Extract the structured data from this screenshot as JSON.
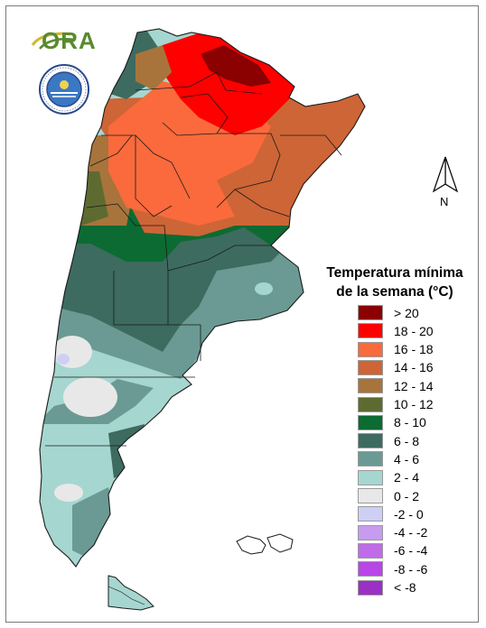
{
  "logo": {
    "text": "ORA"
  },
  "seal": {
    "text": "SERVICIO METEOROLOGICO NACIONAL ARGENTINA"
  },
  "north_arrow": {
    "label": "N"
  },
  "legend": {
    "title_line1": "Temperatura mínima",
    "title_line2": "de la semana (°C)",
    "items": [
      {
        "label": "> 20",
        "color": "#8b0000"
      },
      {
        "label": "18 - 20",
        "color": "#ff0000"
      },
      {
        "label": "16 - 18",
        "color": "#fa6a3c"
      },
      {
        "label": "14 - 16",
        "color": "#cd6536"
      },
      {
        "label": "12 - 14",
        "color": "#a8743c"
      },
      {
        "label": "10 - 12",
        "color": "#5d6b30"
      },
      {
        "label": "8 - 10",
        "color": "#0c6b32"
      },
      {
        "label": "6 - 8",
        "color": "#3d6b5f"
      },
      {
        "label": "4 - 6",
        "color": "#6a9a93"
      },
      {
        "label": "2 - 4",
        "color": "#a6d6d0"
      },
      {
        "label": "0 - 2",
        "color": "#e8e8e8"
      },
      {
        "label": "-2 - 0",
        "color": "#cdcff5"
      },
      {
        "label": "-4 - -2",
        "color": "#c79bf0"
      },
      {
        "label": "-6 - -4",
        "color": "#c06be8"
      },
      {
        "label": "-8 - -6",
        "color": "#b946e6"
      },
      {
        "label": "< -8",
        "color": "#9a30c4"
      }
    ]
  }
}
